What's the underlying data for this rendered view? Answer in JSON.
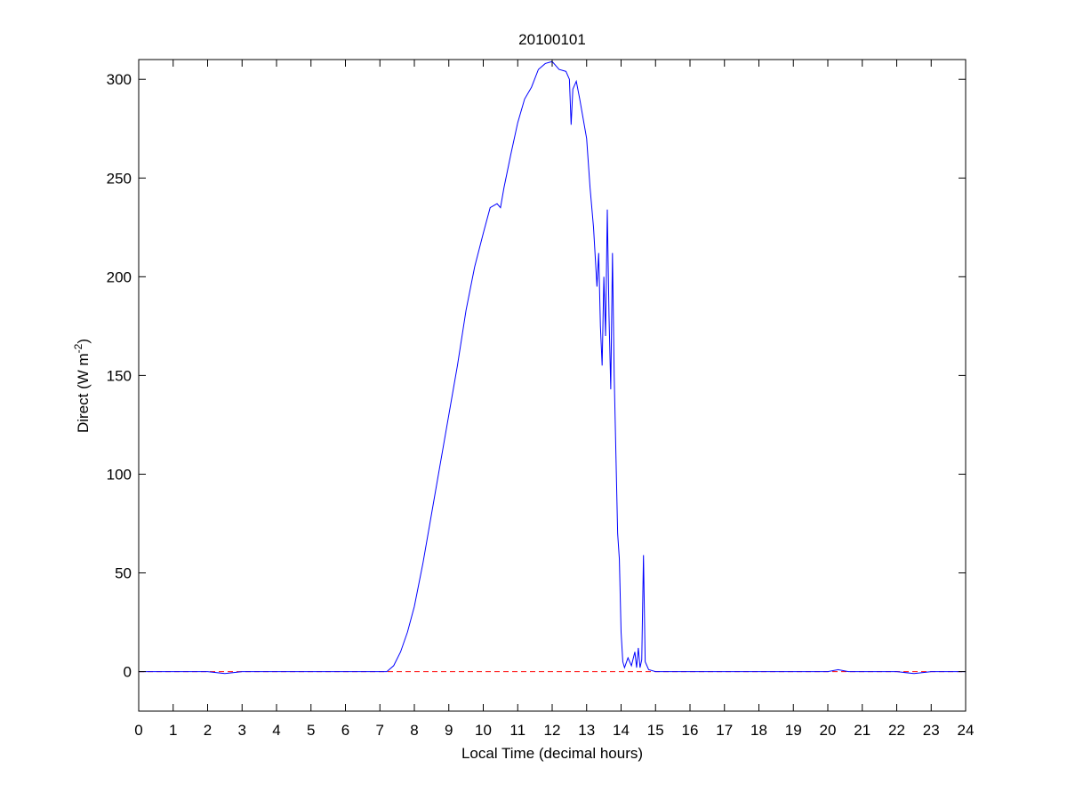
{
  "chart_data": {
    "type": "line",
    "title": "20100101",
    "xlabel": "Local Time (decimal hours)",
    "ylabel": [
      "Direct (W m",
      "-2",
      ")"
    ],
    "x": [
      0,
      0.5,
      1,
      2,
      2.5,
      3,
      4,
      5,
      6,
      7,
      7.2,
      7.4,
      7.6,
      7.8,
      8,
      8.25,
      8.5,
      8.75,
      9,
      9.25,
      9.5,
      9.75,
      10,
      10.2,
      10.4,
      10.5,
      10.6,
      10.8,
      11,
      11.2,
      11.4,
      11.6,
      11.8,
      12,
      12.2,
      12.4,
      12.5,
      12.55,
      12.6,
      12.7,
      12.8,
      13,
      13.1,
      13.2,
      13.3,
      13.35,
      13.4,
      13.45,
      13.5,
      13.55,
      13.6,
      13.65,
      13.7,
      13.75,
      13.8,
      13.9,
      13.95,
      14,
      14.05,
      14.1,
      14.2,
      14.3,
      14.4,
      14.45,
      14.5,
      14.55,
      14.6,
      14.65,
      14.7,
      14.8,
      15,
      16,
      18,
      20,
      20.3,
      20.6,
      21,
      22,
      22.5,
      23,
      24
    ],
    "values": [
      0,
      0,
      0,
      0,
      -1,
      0,
      0,
      0,
      0,
      0,
      0,
      3,
      10,
      20,
      33,
      55,
      80,
      105,
      130,
      155,
      183,
      205,
      222,
      235,
      237,
      235,
      245,
      262,
      278,
      290,
      296,
      305,
      308,
      309,
      305,
      304,
      300,
      277,
      295,
      299,
      290,
      270,
      245,
      225,
      195,
      212,
      175,
      155,
      200,
      170,
      234,
      180,
      143,
      212,
      150,
      70,
      57,
      20,
      5,
      2,
      7,
      3,
      10,
      2,
      12,
      2,
      6,
      59,
      5,
      1,
      0,
      0,
      0,
      0,
      1,
      0,
      0,
      0,
      -1,
      0,
      0
    ],
    "color": "#0000ff",
    "reference_line": {
      "value": 0,
      "color": "#ff0000",
      "style": "dashed"
    },
    "xlim": [
      0,
      24
    ],
    "xticks": [
      0,
      1,
      2,
      3,
      4,
      5,
      6,
      7,
      8,
      9,
      10,
      11,
      12,
      13,
      14,
      15,
      16,
      17,
      18,
      19,
      20,
      21,
      22,
      23,
      24
    ],
    "ylim": [
      -20,
      310
    ],
    "yticks": [
      0,
      50,
      100,
      150,
      200,
      250,
      300
    ],
    "grid": false
  }
}
